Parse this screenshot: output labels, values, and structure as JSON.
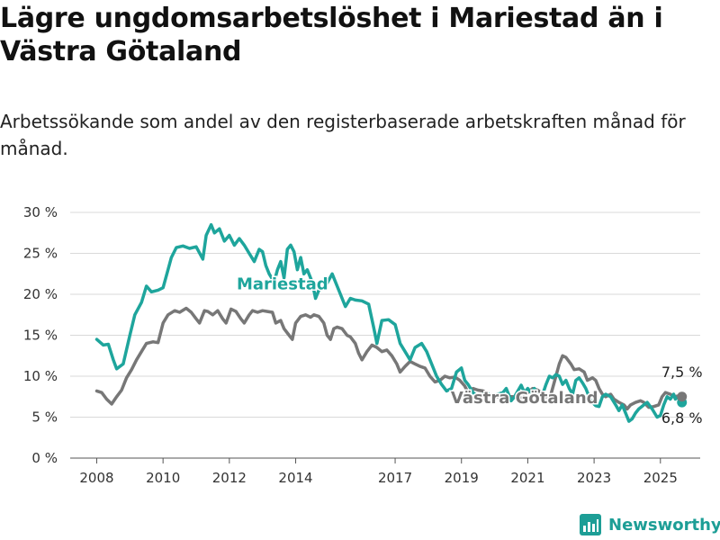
{
  "header": {
    "title": "Lägre ungdomsarbetslöshet i Mariestad än i Västra Götaland",
    "subtitle": "Arbetssökande som andel av den registerbaserade arbetskraften månad för månad."
  },
  "brand": {
    "name": "Newsworthy",
    "color": "#1d9e96"
  },
  "chart_data": {
    "type": "line",
    "title": "Lägre ungdomsarbetslöshet i Mariestad än i Västra Götaland",
    "subtitle": "Arbetssökande som andel av den registerbaserade arbetskraften månad för månad.",
    "xlabel": "",
    "ylabel": "",
    "x_ticks": [
      "2008",
      "2010",
      "2012",
      "2014",
      "2017",
      "2019",
      "2021",
      "2023",
      "2025"
    ],
    "y_ticks": [
      "0 %",
      "5 %",
      "10 %",
      "15 %",
      "20 %",
      "25 %",
      "30 %"
    ],
    "ylim": [
      0,
      30
    ],
    "grid": true,
    "series": [
      {
        "name": "Mariestad",
        "color": "#1ea59c",
        "end_label": "6,8 %",
        "points": [
          [
            2008.0,
            14.5
          ],
          [
            2008.2,
            13.8
          ],
          [
            2008.35,
            13.9
          ],
          [
            2008.5,
            12.0
          ],
          [
            2008.6,
            10.9
          ],
          [
            2008.8,
            11.5
          ],
          [
            2009.0,
            15.0
          ],
          [
            2009.15,
            17.5
          ],
          [
            2009.35,
            19.0
          ],
          [
            2009.5,
            21.0
          ],
          [
            2009.65,
            20.3
          ],
          [
            2009.85,
            20.5
          ],
          [
            2010.0,
            20.8
          ],
          [
            2010.15,
            23.0
          ],
          [
            2010.25,
            24.5
          ],
          [
            2010.4,
            25.7
          ],
          [
            2010.6,
            25.9
          ],
          [
            2010.8,
            25.6
          ],
          [
            2011.0,
            25.8
          ],
          [
            2011.2,
            24.3
          ],
          [
            2011.3,
            27.2
          ],
          [
            2011.45,
            28.5
          ],
          [
            2011.55,
            27.5
          ],
          [
            2011.7,
            28.0
          ],
          [
            2011.85,
            26.5
          ],
          [
            2012.0,
            27.2
          ],
          [
            2012.15,
            26.0
          ],
          [
            2012.3,
            26.8
          ],
          [
            2012.45,
            26.0
          ],
          [
            2012.6,
            25.0
          ],
          [
            2012.75,
            24.0
          ],
          [
            2012.9,
            25.5
          ],
          [
            2013.0,
            25.2
          ],
          [
            2013.1,
            23.5
          ],
          [
            2013.2,
            22.5
          ],
          [
            2013.35,
            21.5
          ],
          [
            2013.45,
            23.0
          ],
          [
            2013.55,
            24.0
          ],
          [
            2013.65,
            22.0
          ],
          [
            2013.75,
            25.5
          ],
          [
            2013.85,
            26.0
          ],
          [
            2013.95,
            25.2
          ],
          [
            2014.05,
            23.0
          ],
          [
            2014.15,
            24.5
          ],
          [
            2014.25,
            22.5
          ],
          [
            2014.35,
            23.0
          ],
          [
            2014.5,
            21.5
          ],
          [
            2014.6,
            19.5
          ],
          [
            2014.7,
            20.5
          ],
          [
            2014.9,
            21.0
          ],
          [
            2015.1,
            22.5
          ],
          [
            2015.25,
            21.0
          ],
          [
            2015.4,
            19.5
          ],
          [
            2015.5,
            18.5
          ],
          [
            2015.65,
            19.5
          ],
          [
            2015.8,
            19.3
          ],
          [
            2016.0,
            19.2
          ],
          [
            2016.2,
            18.8
          ],
          [
            2016.35,
            16.0
          ],
          [
            2016.45,
            14.0
          ],
          [
            2016.6,
            16.8
          ],
          [
            2016.8,
            16.9
          ],
          [
            2017.0,
            16.3
          ],
          [
            2017.15,
            14.0
          ],
          [
            2017.3,
            13.0
          ],
          [
            2017.45,
            12.0
          ],
          [
            2017.6,
            13.5
          ],
          [
            2017.8,
            14.0
          ],
          [
            2017.95,
            13.0
          ],
          [
            2018.1,
            11.5
          ],
          [
            2018.25,
            10.0
          ],
          [
            2018.4,
            9.0
          ],
          [
            2018.55,
            8.2
          ],
          [
            2018.7,
            8.5
          ],
          [
            2018.85,
            10.5
          ],
          [
            2019.0,
            11.0
          ],
          [
            2019.1,
            9.5
          ],
          [
            2019.2,
            9.0
          ],
          [
            2019.35,
            8.0
          ],
          [
            2019.5,
            7.5
          ],
          [
            2019.65,
            7.8
          ],
          [
            2019.8,
            7.9
          ],
          [
            2019.9,
            7.6
          ],
          [
            2020.1,
            7.8
          ],
          [
            2020.25,
            8.0
          ],
          [
            2020.35,
            8.5
          ],
          [
            2020.5,
            7.0
          ],
          [
            2020.6,
            7.5
          ],
          [
            2020.8,
            8.9
          ],
          [
            2020.9,
            8.0
          ],
          [
            2021.0,
            8.5
          ],
          [
            2021.1,
            8.0
          ],
          [
            2021.2,
            8.5
          ],
          [
            2021.3,
            7.5
          ],
          [
            2021.45,
            7.8
          ],
          [
            2021.55,
            9.0
          ],
          [
            2021.65,
            10.0
          ],
          [
            2021.75,
            9.8
          ],
          [
            2021.85,
            10.2
          ],
          [
            2021.95,
            10.0
          ],
          [
            2022.05,
            9.0
          ],
          [
            2022.15,
            9.5
          ],
          [
            2022.25,
            8.5
          ],
          [
            2022.35,
            7.8
          ],
          [
            2022.45,
            9.5
          ],
          [
            2022.55,
            9.8
          ],
          [
            2022.65,
            9.2
          ],
          [
            2022.75,
            8.5
          ],
          [
            2022.9,
            7.0
          ],
          [
            2023.05,
            6.4
          ],
          [
            2023.15,
            6.3
          ],
          [
            2023.25,
            7.5
          ],
          [
            2023.35,
            7.8
          ],
          [
            2023.5,
            7.5
          ],
          [
            2023.65,
            6.5
          ],
          [
            2023.75,
            5.8
          ],
          [
            2023.85,
            6.5
          ],
          [
            2023.95,
            5.5
          ],
          [
            2024.05,
            4.5
          ],
          [
            2024.15,
            4.8
          ],
          [
            2024.25,
            5.5
          ],
          [
            2024.35,
            6.0
          ],
          [
            2024.5,
            6.5
          ],
          [
            2024.6,
            6.8
          ],
          [
            2024.75,
            6.0
          ],
          [
            2024.9,
            5.0
          ],
          [
            2025.0,
            5.2
          ],
          [
            2025.1,
            6.5
          ],
          [
            2025.2,
            7.5
          ],
          [
            2025.3,
            7.2
          ],
          [
            2025.4,
            7.8
          ],
          [
            2025.45,
            7.2
          ],
          [
            2025.55,
            7.5
          ],
          [
            2025.65,
            6.8
          ]
        ]
      },
      {
        "name": "Västra Götaland",
        "color": "#777777",
        "end_label": "7,5 %",
        "points": [
          [
            2008.0,
            8.2
          ],
          [
            2008.15,
            8.0
          ],
          [
            2008.3,
            7.2
          ],
          [
            2008.45,
            6.6
          ],
          [
            2008.6,
            7.5
          ],
          [
            2008.75,
            8.3
          ],
          [
            2008.9,
            9.8
          ],
          [
            2009.05,
            10.8
          ],
          [
            2009.2,
            12.0
          ],
          [
            2009.35,
            13.0
          ],
          [
            2009.5,
            14.0
          ],
          [
            2009.7,
            14.2
          ],
          [
            2009.85,
            14.1
          ],
          [
            2010.0,
            16.5
          ],
          [
            2010.15,
            17.5
          ],
          [
            2010.35,
            18.0
          ],
          [
            2010.5,
            17.8
          ],
          [
            2010.7,
            18.3
          ],
          [
            2010.85,
            17.8
          ],
          [
            2011.0,
            17.0
          ],
          [
            2011.1,
            16.5
          ],
          [
            2011.25,
            18.0
          ],
          [
            2011.35,
            17.9
          ],
          [
            2011.5,
            17.5
          ],
          [
            2011.65,
            18.0
          ],
          [
            2011.8,
            17.0
          ],
          [
            2011.9,
            16.5
          ],
          [
            2012.05,
            18.2
          ],
          [
            2012.2,
            17.9
          ],
          [
            2012.35,
            17.0
          ],
          [
            2012.45,
            16.5
          ],
          [
            2012.6,
            17.5
          ],
          [
            2012.7,
            18.0
          ],
          [
            2012.85,
            17.8
          ],
          [
            2013.0,
            18.0
          ],
          [
            2013.15,
            17.9
          ],
          [
            2013.3,
            17.8
          ],
          [
            2013.4,
            16.5
          ],
          [
            2013.55,
            16.8
          ],
          [
            2013.65,
            15.8
          ],
          [
            2013.8,
            15.0
          ],
          [
            2013.9,
            14.5
          ],
          [
            2014.0,
            16.5
          ],
          [
            2014.15,
            17.3
          ],
          [
            2014.3,
            17.5
          ],
          [
            2014.45,
            17.2
          ],
          [
            2014.55,
            17.5
          ],
          [
            2014.7,
            17.3
          ],
          [
            2014.85,
            16.5
          ],
          [
            2014.95,
            15.0
          ],
          [
            2015.05,
            14.5
          ],
          [
            2015.15,
            15.8
          ],
          [
            2015.25,
            16.0
          ],
          [
            2015.4,
            15.8
          ],
          [
            2015.55,
            15.0
          ],
          [
            2015.65,
            14.8
          ],
          [
            2015.8,
            14.0
          ],
          [
            2015.9,
            12.8
          ],
          [
            2016.0,
            12.0
          ],
          [
            2016.15,
            13.0
          ],
          [
            2016.3,
            13.8
          ],
          [
            2016.45,
            13.5
          ],
          [
            2016.6,
            13.0
          ],
          [
            2016.75,
            13.2
          ],
          [
            2016.9,
            12.5
          ],
          [
            2017.05,
            11.5
          ],
          [
            2017.15,
            10.5
          ],
          [
            2017.3,
            11.2
          ],
          [
            2017.45,
            11.8
          ],
          [
            2017.6,
            11.5
          ],
          [
            2017.75,
            11.2
          ],
          [
            2017.9,
            11.0
          ],
          [
            2018.05,
            10.0
          ],
          [
            2018.2,
            9.3
          ],
          [
            2018.35,
            9.5
          ],
          [
            2018.5,
            10.0
          ],
          [
            2018.65,
            9.8
          ],
          [
            2018.8,
            9.9
          ],
          [
            2018.95,
            9.5
          ],
          [
            2019.1,
            8.8
          ],
          [
            2019.2,
            8.0
          ],
          [
            2019.35,
            8.5
          ],
          [
            2019.5,
            8.3
          ],
          [
            2019.65,
            8.2
          ],
          [
            2019.8,
            7.8
          ],
          [
            2019.95,
            7.7
          ],
          [
            2020.1,
            7.5
          ],
          [
            2020.25,
            7.6
          ],
          [
            2020.4,
            7.5
          ],
          [
            2020.55,
            7.5
          ],
          [
            2020.7,
            7.3
          ],
          [
            2020.85,
            7.4
          ],
          [
            2021.0,
            8.0
          ],
          [
            2021.15,
            8.5
          ],
          [
            2021.3,
            8.3
          ],
          [
            2021.45,
            7.8
          ],
          [
            2021.55,
            7.5
          ],
          [
            2021.7,
            7.8
          ],
          [
            2021.85,
            10.0
          ],
          [
            2021.95,
            11.5
          ],
          [
            2022.05,
            12.5
          ],
          [
            2022.15,
            12.3
          ],
          [
            2022.3,
            11.5
          ],
          [
            2022.4,
            10.8
          ],
          [
            2022.55,
            10.9
          ],
          [
            2022.7,
            10.5
          ],
          [
            2022.8,
            9.5
          ],
          [
            2022.95,
            9.8
          ],
          [
            2023.05,
            9.5
          ],
          [
            2023.15,
            8.5
          ],
          [
            2023.25,
            7.8
          ],
          [
            2023.35,
            7.5
          ],
          [
            2023.5,
            7.8
          ],
          [
            2023.6,
            7.2
          ],
          [
            2023.75,
            6.8
          ],
          [
            2023.9,
            6.5
          ],
          [
            2024.0,
            6.0
          ],
          [
            2024.1,
            6.5
          ],
          [
            2024.25,
            6.8
          ],
          [
            2024.4,
            7.0
          ],
          [
            2024.5,
            6.8
          ],
          [
            2024.65,
            6.2
          ],
          [
            2024.8,
            6.3
          ],
          [
            2024.95,
            6.5
          ],
          [
            2025.05,
            7.5
          ],
          [
            2025.15,
            8.0
          ],
          [
            2025.3,
            7.8
          ],
          [
            2025.4,
            7.5
          ],
          [
            2025.55,
            7.6
          ],
          [
            2025.65,
            7.5
          ]
        ]
      }
    ],
    "annotations": [
      {
        "text": "Mariestad",
        "series": "Mariestad",
        "x": 2013.6,
        "y": 20.6
      },
      {
        "text": "Västra Götaland",
        "series": "Västra Götaland",
        "x": 2020.9,
        "y": 6.7
      }
    ]
  }
}
